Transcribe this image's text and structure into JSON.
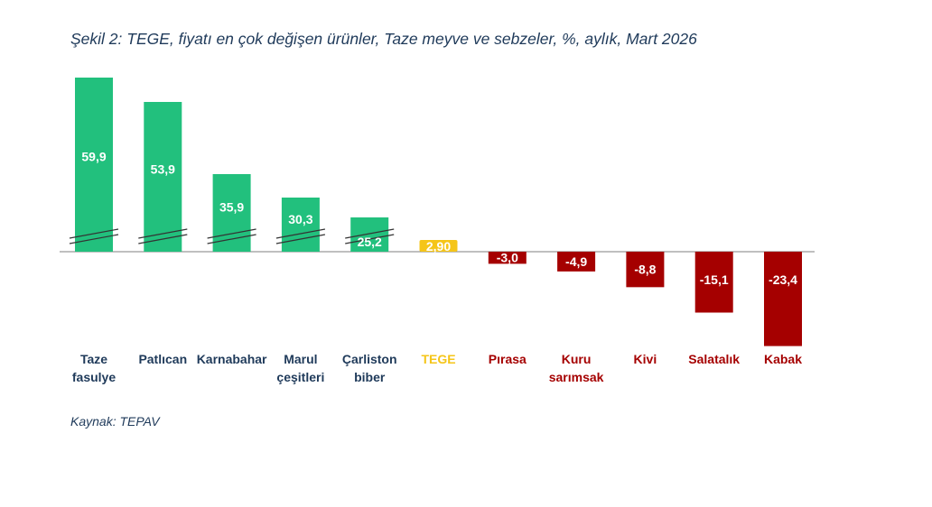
{
  "title": "Şekil 2: TEGE, fiyatı en çok değişen ürünler, Taze meyve ve sebzeler, %, aylık, Mart 2026",
  "source": "Kaynak: TEPAV",
  "colors": {
    "positive": "#22c07d",
    "tege": "#f5c518",
    "negative": "#a50000",
    "axis": "#7f7f7f",
    "category_text": "#1f3a5a"
  },
  "chart_data": {
    "type": "bar",
    "categories": [
      [
        "Taze",
        "fasulye"
      ],
      [
        "Patlıcan"
      ],
      [
        "Karnabahar"
      ],
      [
        "Marul",
        "çeşitleri"
      ],
      [
        "Çarliston",
        "biber"
      ],
      [
        "TEGE"
      ],
      [
        "Pırasa"
      ],
      [
        "Kuru",
        "sarımsak"
      ],
      [
        "Kivi"
      ],
      [
        "Salatalık"
      ],
      [
        "Kabak"
      ]
    ],
    "values": [
      59.9,
      53.9,
      35.9,
      30.3,
      25.2,
      2.9,
      -3.0,
      -4.9,
      -8.8,
      -15.1,
      -23.4
    ],
    "labels": [
      "59,9",
      "53,9",
      "35,9",
      "30,3",
      "25,2",
      "2,90",
      "-3,0",
      "-4,9",
      "-8,8",
      "-15,1",
      "-23,4"
    ],
    "groups": [
      "positive",
      "positive",
      "positive",
      "positive",
      "positive",
      "tege",
      "negative",
      "negative",
      "negative",
      "negative",
      "negative"
    ],
    "broken_axis": [
      true,
      true,
      true,
      true,
      true,
      false,
      false,
      false,
      false,
      false,
      false
    ]
  }
}
